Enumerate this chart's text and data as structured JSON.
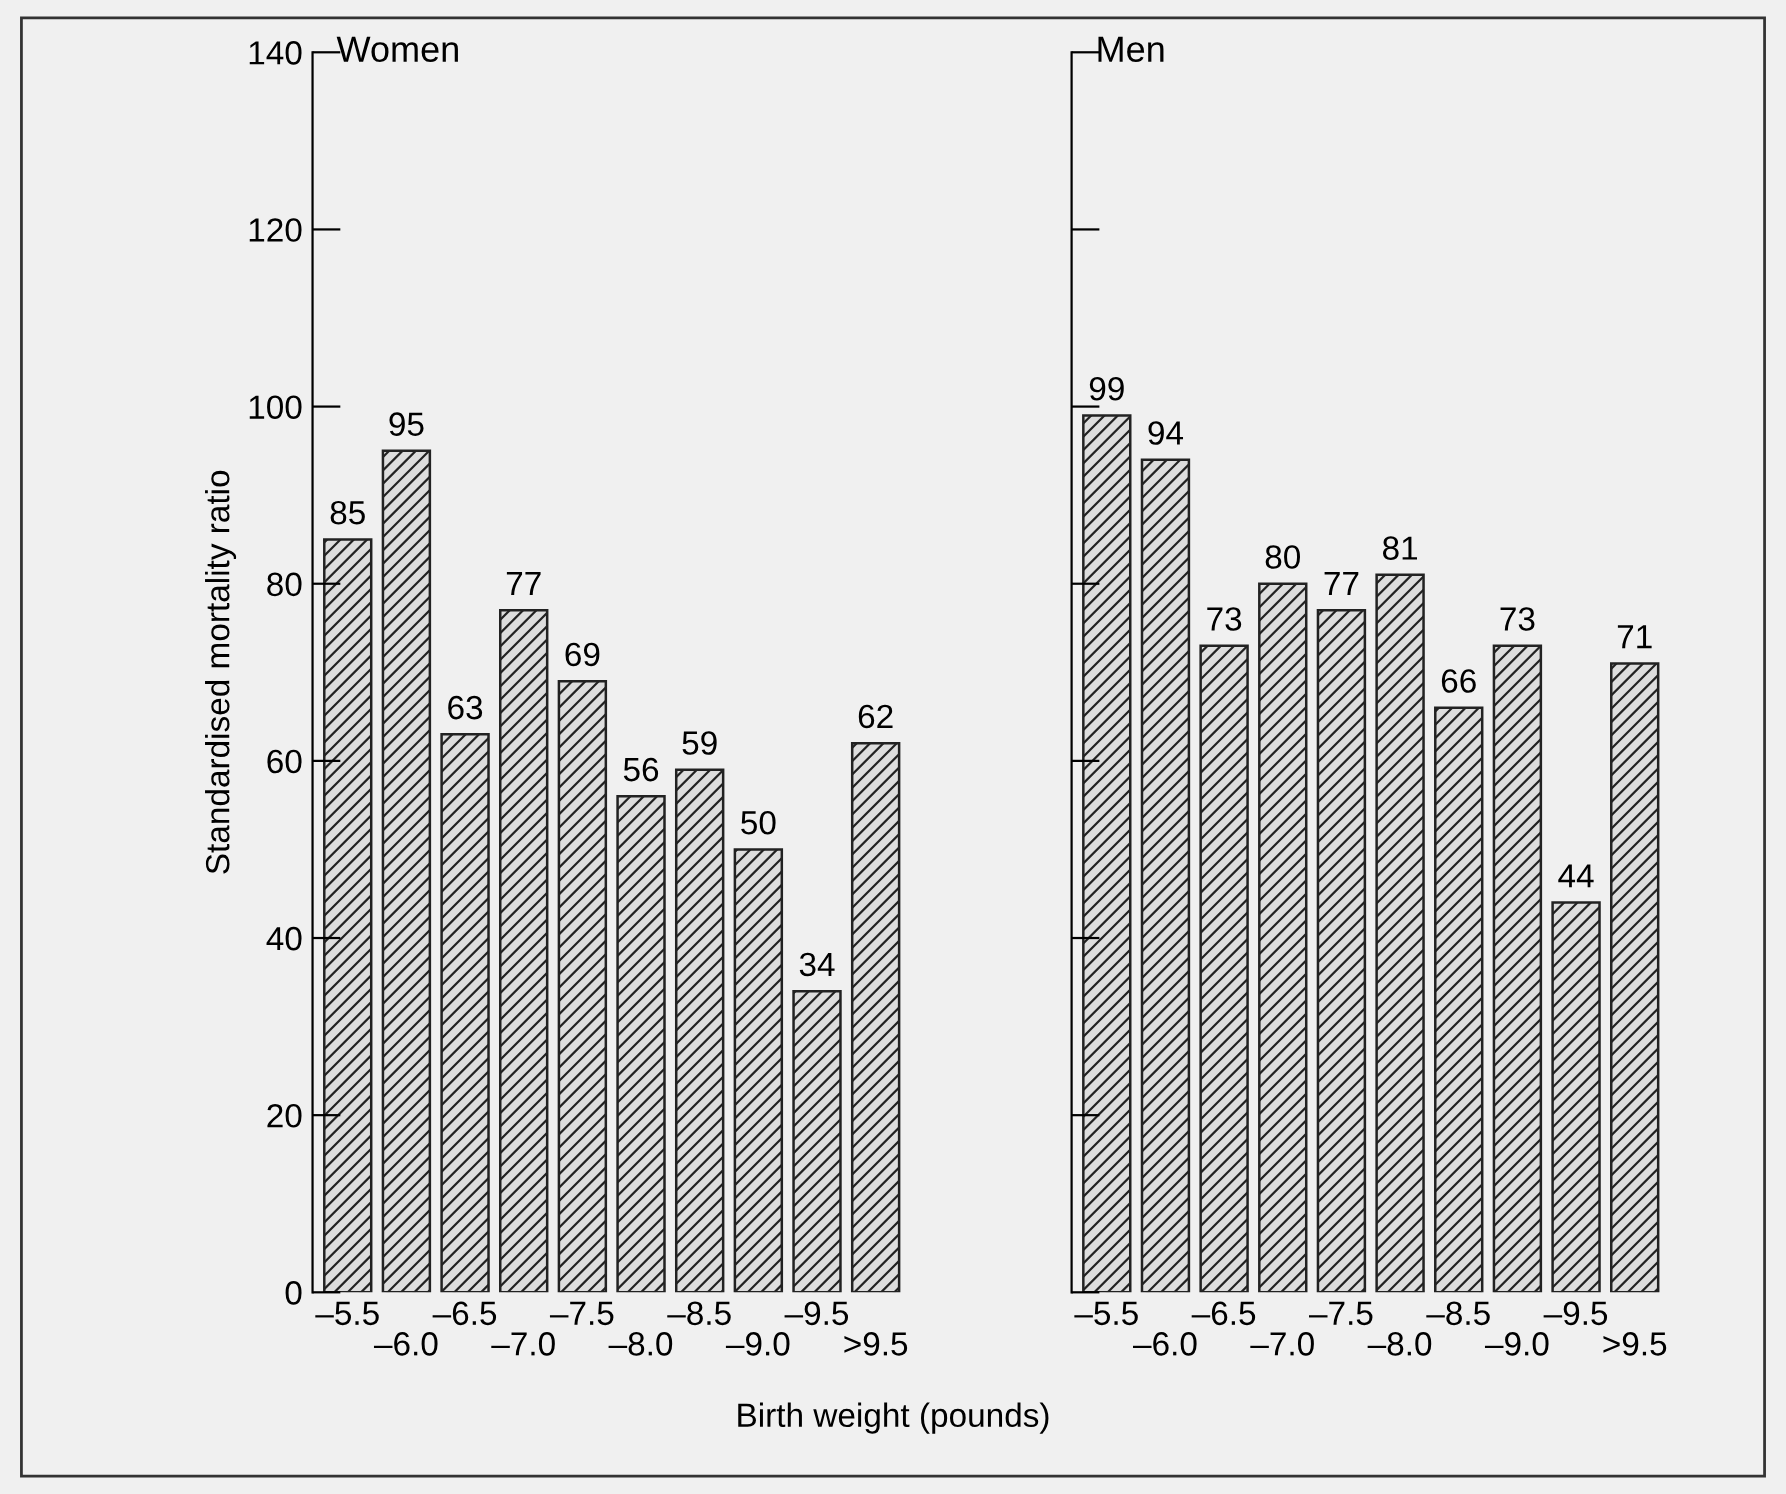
{
  "chart_data": [
    {
      "type": "bar",
      "title": "Women",
      "ylabel": "Standardised mortality ratio",
      "xlabel": "Birth weight (pounds)",
      "categories": [
        "–5.5",
        "–6.0",
        "–6.5",
        "–7.0",
        "–7.5",
        "–8.0",
        "–8.5",
        "–9.0",
        "–9.5",
        ">9.5"
      ],
      "values": [
        85,
        95,
        63,
        77,
        69,
        56,
        59,
        50,
        34,
        62
      ],
      "color": "#222222",
      "data_labels": true,
      "ylim": [
        0,
        140
      ],
      "yticks": [
        0,
        20,
        40,
        60,
        80,
        100,
        120,
        140
      ]
    },
    {
      "type": "bar",
      "title": "Men",
      "categories": [
        "–5.5",
        "–6.0",
        "–6.5",
        "–7.0",
        "–7.5",
        "–8.0",
        "–8.5",
        "–9.0",
        "–9.5",
        ">9.5"
      ],
      "values": [
        99,
        94,
        73,
        80,
        77,
        81,
        66,
        73,
        44,
        71
      ],
      "color": "#222222",
      "data_labels": true,
      "ylim": [
        0,
        140
      ],
      "yticks": [
        0,
        20,
        40,
        60,
        80,
        100,
        120,
        140
      ],
      "tick_labels": "x"
    }
  ]
}
